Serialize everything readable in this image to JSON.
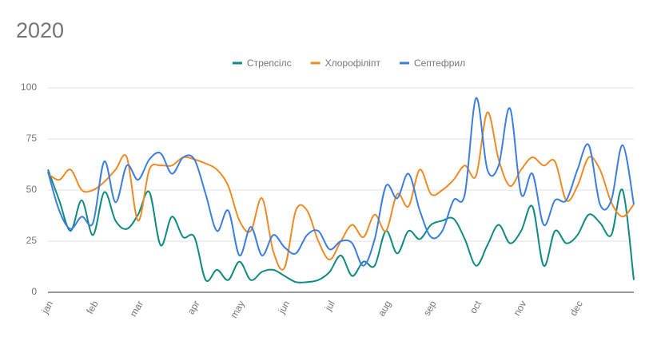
{
  "chart_data": {
    "type": "line",
    "title": "2020",
    "categories": [
      "jan",
      null,
      null,
      null,
      "feb",
      null,
      null,
      null,
      "mar",
      null,
      null,
      null,
      null,
      "apr",
      null,
      null,
      null,
      "may",
      null,
      null,
      null,
      "jun",
      null,
      null,
      null,
      "jul",
      null,
      null,
      null,
      null,
      "aug",
      null,
      null,
      null,
      "sep",
      null,
      null,
      null,
      "oct",
      null,
      null,
      null,
      "nov",
      null,
      null,
      null,
      null,
      "dec",
      null,
      null,
      null,
      null,
      null
    ],
    "series": [
      {
        "name": "Стрепсілс",
        "color": "#0e8a80",
        "values": [
          60,
          45,
          30,
          45,
          28,
          49,
          35,
          31,
          38,
          49,
          23,
          37,
          27,
          27,
          6,
          11,
          6,
          15,
          6,
          10,
          11,
          8,
          5,
          5,
          6,
          10,
          18,
          8,
          15,
          13,
          30,
          19,
          30,
          26,
          33,
          35,
          36,
          26,
          13,
          23,
          33,
          24,
          30,
          42,
          13,
          30,
          24,
          28,
          38,
          34,
          28,
          50,
          6
        ]
      },
      {
        "name": "Хлорофіліпт",
        "color": "#f08a24",
        "values": [
          58,
          55,
          60,
          50,
          50,
          54,
          60,
          66,
          35,
          60,
          62,
          62,
          66,
          65,
          63,
          60,
          52,
          35,
          30,
          46,
          20,
          12,
          40,
          40,
          25,
          16,
          25,
          33,
          27,
          38,
          30,
          48,
          42,
          60,
          48,
          50,
          55,
          62,
          57,
          88,
          65,
          52,
          60,
          66,
          62,
          64,
          45,
          52,
          66,
          60,
          44,
          37,
          43
        ]
      },
      {
        "name": "Септефрил",
        "color": "#3b7de0",
        "values": [
          59,
          40,
          31,
          37,
          34,
          64,
          44,
          62,
          55,
          65,
          68,
          58,
          66,
          65,
          48,
          30,
          40,
          18,
          32,
          18,
          28,
          22,
          19,
          28,
          30,
          21,
          25,
          24,
          13,
          26,
          52,
          46,
          58,
          40,
          27,
          30,
          45,
          48,
          95,
          60,
          62,
          90,
          48,
          58,
          33,
          45,
          45,
          60,
          72,
          43,
          45,
          72,
          43
        ]
      }
    ],
    "ylim": [
      0,
      100
    ],
    "yticks": [
      0,
      25,
      50,
      75,
      100
    ],
    "grid": true,
    "legend": "top"
  }
}
